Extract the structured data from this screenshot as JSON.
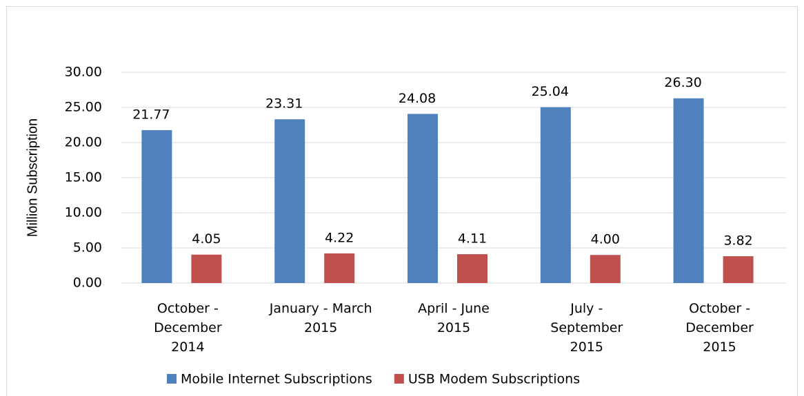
{
  "chart_data": {
    "type": "bar",
    "y_axis_label": "Million Subscription",
    "categories": [
      "October - December 2014",
      "January - March 2015",
      "April - June 2015",
      "July - September 2015",
      "October - December 2015"
    ],
    "series": [
      {
        "name": "Mobile Internet Subscriptions",
        "color": "#4f81bd",
        "values": [
          21.77,
          23.31,
          24.08,
          25.04,
          26.3
        ],
        "value_labels": [
          "21.77",
          "23.31",
          "24.08",
          "25.04",
          "26.30"
        ]
      },
      {
        "name": "USB Modem Subscriptions",
        "color": "#c0504d",
        "values": [
          4.05,
          4.22,
          4.11,
          4.0,
          3.82
        ],
        "value_labels": [
          "4.05",
          "4.22",
          "4.11",
          "4.00",
          "3.82"
        ]
      }
    ],
    "ylim": [
      0,
      30
    ],
    "yticks": [
      {
        "value": 0,
        "label": "0.00"
      },
      {
        "value": 5,
        "label": "5.00"
      },
      {
        "value": 10,
        "label": "10.00"
      },
      {
        "value": 15,
        "label": "15.00"
      },
      {
        "value": 20,
        "label": "20.00"
      },
      {
        "value": 25,
        "label": "25.00"
      },
      {
        "value": 30,
        "label": "30.00"
      }
    ],
    "grid": true,
    "legend": "bottom"
  }
}
